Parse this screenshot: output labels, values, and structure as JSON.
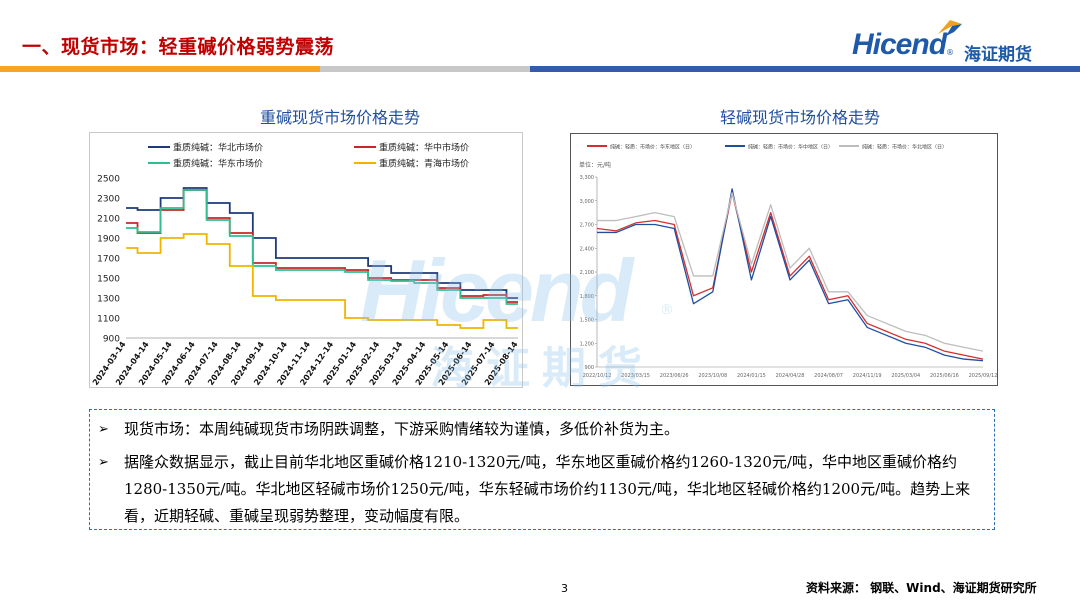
{
  "header": {
    "title": "一、现货市场：轻重碱价格弱势震荡",
    "logo_text": "Hicend",
    "logo_reg": "®",
    "logo_cn": "海证期货",
    "colors": {
      "title": "#c00000",
      "brand": "#1e5aa8"
    }
  },
  "watermark": {
    "text_en": "Hicend",
    "text_cn": "海证期货",
    "reg": "®"
  },
  "chart_data": [
    {
      "type": "line",
      "title": "重碱现货市场价格走势",
      "categories": [
        "2024-03-14",
        "2024-04-14",
        "2024-05-14",
        "2024-06-14",
        "2024-07-14",
        "2024-08-14",
        "2024-09-14",
        "2024-10-14",
        "2024-11-14",
        "2024-12-14",
        "2025-01-14",
        "2025-02-14",
        "2025-03-14",
        "2025-04-14",
        "2025-05-14",
        "2025-06-14",
        "2025-07-14",
        "2025-08-14"
      ],
      "y_ticks": [
        900,
        1100,
        1300,
        1500,
        1700,
        1900,
        2100,
        2300,
        2500
      ],
      "ylim": [
        900,
        2500
      ],
      "legend_position": "top",
      "series": [
        {
          "name": "重质纯碱：华北市场价",
          "color": "#1f3a7a",
          "values": [
            2200,
            2180,
            2300,
            2400,
            2250,
            2150,
            1900,
            1700,
            1700,
            1700,
            1700,
            1620,
            1550,
            1550,
            1450,
            1380,
            1380,
            1300
          ]
        },
        {
          "name": "重质纯碱：华中市场价",
          "color": "#c62828",
          "values": [
            2050,
            1950,
            2180,
            2380,
            2100,
            1950,
            1650,
            1600,
            1600,
            1600,
            1580,
            1500,
            1480,
            1480,
            1400,
            1320,
            1330,
            1260
          ]
        },
        {
          "name": "重质纯碱：华东市场价",
          "color": "#2fbf8f",
          "values": [
            2000,
            1960,
            2200,
            2380,
            2080,
            1920,
            1620,
            1580,
            1580,
            1580,
            1560,
            1480,
            1470,
            1450,
            1380,
            1300,
            1300,
            1240
          ]
        },
        {
          "name": "重质纯碱：青海市场价",
          "color": "#f0b400",
          "values": [
            1800,
            1750,
            1900,
            1940,
            1840,
            1620,
            1320,
            1280,
            1280,
            1280,
            1100,
            1080,
            1080,
            1080,
            1030,
            1000,
            1080,
            1000
          ]
        }
      ]
    },
    {
      "type": "line",
      "title": "轻碱现货市场价格走势",
      "unit_label": "单位：元/吨",
      "x_ticks": [
        "2022/10/12",
        "2023/03/15",
        "2023/06/26",
        "2023/10/08",
        "2024/01/15",
        "2024/04/28",
        "2024/08/07",
        "2024/11/19",
        "2025/03/04",
        "2025/06/16",
        "2025/09/12"
      ],
      "y_ticks": [
        900,
        1200,
        1500,
        1800,
        2100,
        2400,
        2700,
        3000,
        3300
      ],
      "ylim": [
        900,
        3300
      ],
      "legend_position": "top",
      "series": [
        {
          "name": "纯碱：轻质：市场价：华东地区（日）",
          "color": "#d32f2f",
          "values": [
            2650,
            2620,
            2720,
            2750,
            2700,
            1800,
            1900,
            3100,
            2100,
            2850,
            2050,
            2300,
            1750,
            1800,
            1450,
            1350,
            1250,
            1200,
            1100,
            1050,
            1000
          ]
        },
        {
          "name": "纯碱：轻质：市场价：华中地区（日）",
          "color": "#1e50a0",
          "values": [
            2600,
            2600,
            2700,
            2700,
            2650,
            1700,
            1850,
            3150,
            2000,
            2800,
            2000,
            2250,
            1700,
            1750,
            1400,
            1300,
            1200,
            1150,
            1050,
            1000,
            980
          ]
        },
        {
          "name": "纯碱：轻质：市场价：华北地区（日）",
          "color": "#bdbdbd",
          "values": [
            2750,
            2750,
            2800,
            2850,
            2800,
            2050,
            2050,
            3100,
            2200,
            2950,
            2150,
            2400,
            1850,
            1850,
            1550,
            1450,
            1350,
            1300,
            1200,
            1150,
            1100
          ]
        }
      ]
    }
  ],
  "notes": [
    "现货市场：本周纯碱现货市场阴跌调整，下游采购情绪较为谨慎，多低价补货为主。",
    "据隆众数据显示，截止目前华北地区重碱价格1210-1320元/吨，华东地区重碱价格约1260-1320元/吨，华中地区重碱价格约1280-1350元/吨。华北地区轻碱市场价1250元/吨，华东轻碱市场价约1130元/吨，华北地区轻碱价格约1200元/吨。趋势上来看，近期轻碱、重碱呈现弱势整理，变动幅度有限。"
  ],
  "footer": {
    "page_number": "3",
    "source": "资料来源：  钢联、Wind、海证期货研究所"
  }
}
